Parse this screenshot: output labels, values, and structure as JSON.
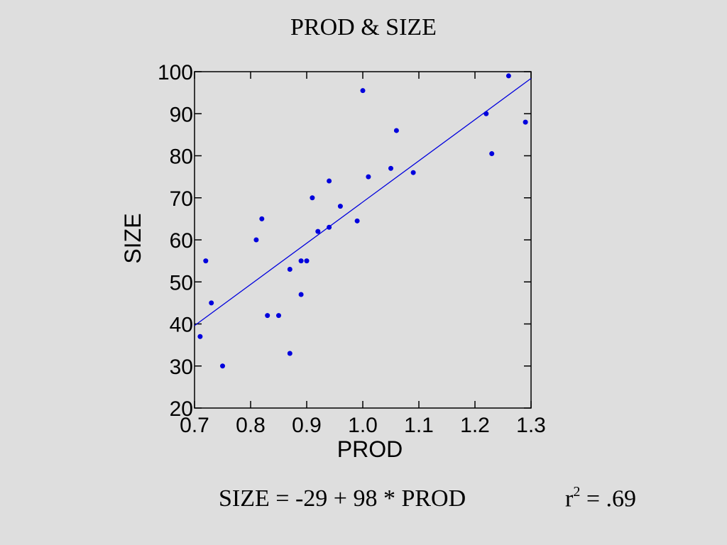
{
  "equation": "SIZE = -29 + 98 * PROD",
  "r_squared": {
    "base": "r",
    "exponent": "2",
    "value": " = .69"
  },
  "colors": {
    "points": "#0000dd",
    "line": "#0000dd",
    "axis": "#000000",
    "background": "#dedede"
  },
  "chart_data": {
    "type": "scatter",
    "title": "PROD & SIZE",
    "xlabel": "PROD",
    "ylabel": "SIZE",
    "xlim": [
      0.7,
      1.3
    ],
    "ylim": [
      20,
      100
    ],
    "xticks": [
      "0.7",
      "0.8",
      "0.9",
      "1.0",
      "1.1",
      "1.2",
      "1.3"
    ],
    "yticks": [
      "20",
      "30",
      "40",
      "50",
      "60",
      "70",
      "80",
      "90",
      "100"
    ],
    "grid": false,
    "points": [
      {
        "x": 0.71,
        "y": 37
      },
      {
        "x": 0.72,
        "y": 55
      },
      {
        "x": 0.73,
        "y": 45
      },
      {
        "x": 0.75,
        "y": 30
      },
      {
        "x": 0.81,
        "y": 60
      },
      {
        "x": 0.82,
        "y": 65
      },
      {
        "x": 0.83,
        "y": 42
      },
      {
        "x": 0.85,
        "y": 42
      },
      {
        "x": 0.87,
        "y": 53
      },
      {
        "x": 0.87,
        "y": 33
      },
      {
        "x": 0.89,
        "y": 55
      },
      {
        "x": 0.89,
        "y": 47
      },
      {
        "x": 0.9,
        "y": 55
      },
      {
        "x": 0.91,
        "y": 70
      },
      {
        "x": 0.92,
        "y": 62
      },
      {
        "x": 0.94,
        "y": 74
      },
      {
        "x": 0.94,
        "y": 63
      },
      {
        "x": 0.96,
        "y": 68
      },
      {
        "x": 0.99,
        "y": 64.5
      },
      {
        "x": 1.0,
        "y": 95.5
      },
      {
        "x": 1.01,
        "y": 75
      },
      {
        "x": 1.05,
        "y": 77
      },
      {
        "x": 1.06,
        "y": 86
      },
      {
        "x": 1.09,
        "y": 76
      },
      {
        "x": 1.22,
        "y": 90
      },
      {
        "x": 1.23,
        "y": 80.5
      },
      {
        "x": 1.26,
        "y": 99
      },
      {
        "x": 1.29,
        "y": 88
      }
    ],
    "fit_line": {
      "intercept": -29,
      "slope": 98
    }
  }
}
